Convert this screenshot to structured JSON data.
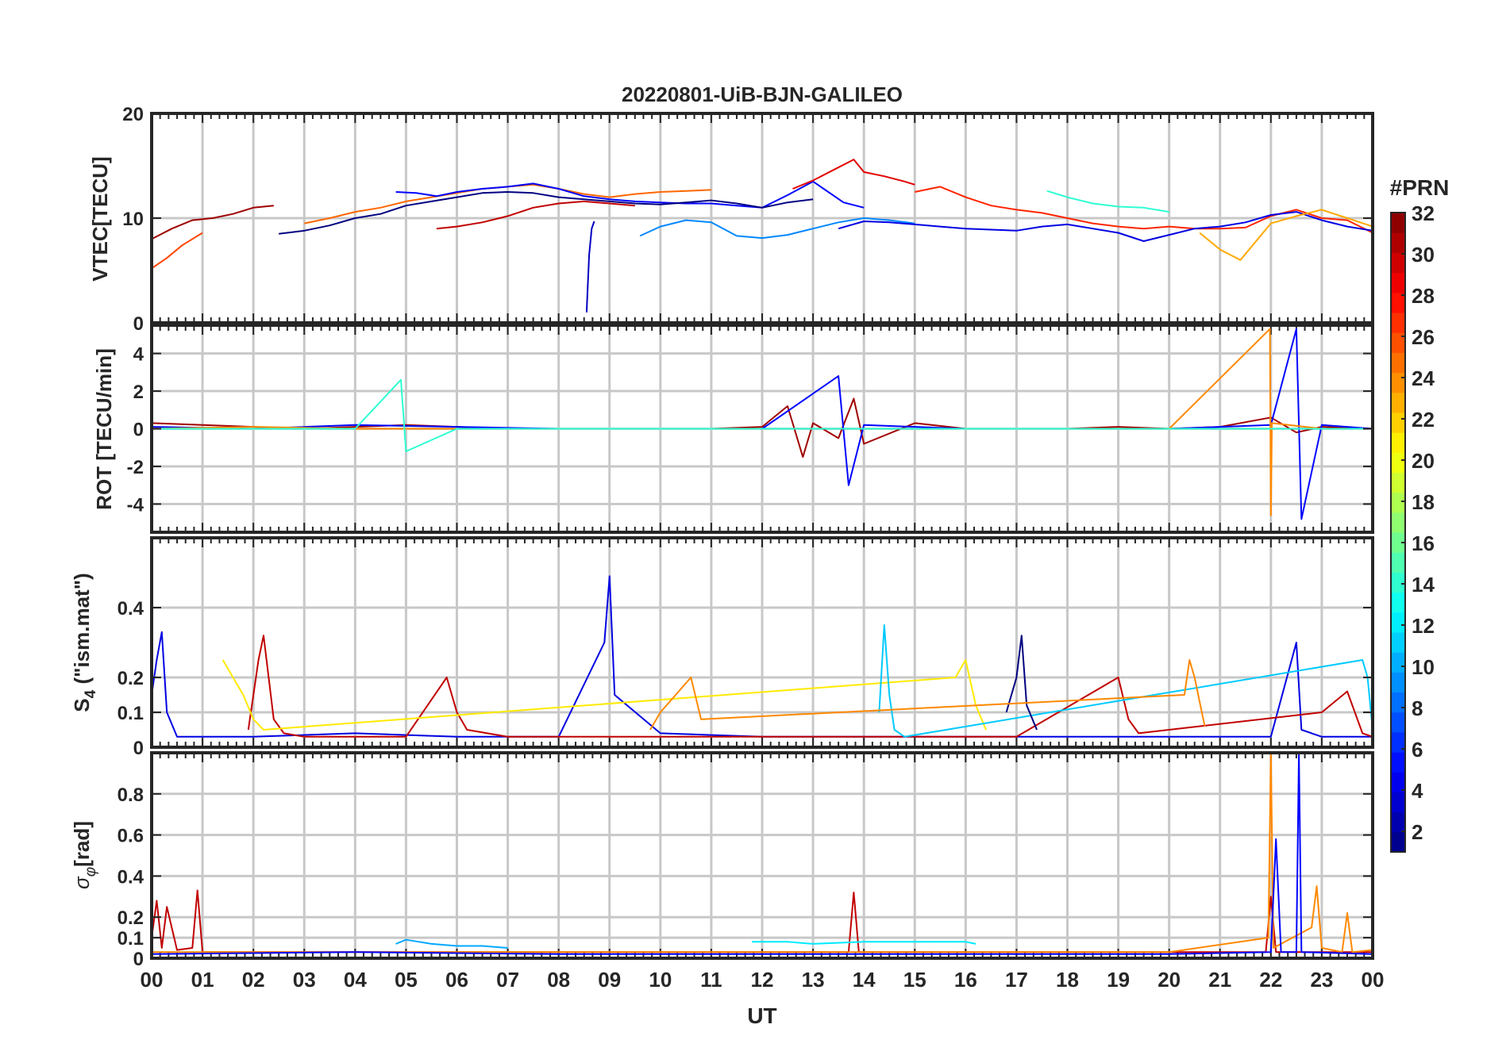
{
  "figure_title": "20220801-UiB-BJN-GALILEO",
  "colorbar": {
    "label": "#PRN",
    "ticks": [
      "2",
      "4",
      "6",
      "8",
      "10",
      "12",
      "14",
      "16",
      "18",
      "20",
      "22",
      "24",
      "26",
      "28",
      "30",
      "32"
    ],
    "range": [
      1,
      32
    ],
    "colormap": "jet"
  },
  "chart_data": [
    {
      "type": "line",
      "panel": "vtec",
      "ylabel": "VTEC[TECU]",
      "xlabel": "",
      "ylim": [
        0,
        20
      ],
      "yticks": [
        0,
        10,
        20
      ],
      "ytick_labels": [
        "0",
        "10",
        "20"
      ],
      "xlim": [
        0,
        24
      ],
      "grid": true,
      "series": [
        {
          "prn": 31,
          "x": [
            0.0,
            0.4,
            0.8,
            1.2,
            1.6,
            2.0,
            2.4
          ],
          "y": [
            8.0,
            9.0,
            9.8,
            10.0,
            10.4,
            11.0,
            11.2
          ]
        },
        {
          "prn": 26,
          "x": [
            0.0,
            0.3,
            0.6,
            1.0
          ],
          "y": [
            5.2,
            6.2,
            7.4,
            8.6
          ]
        },
        {
          "prn": 25,
          "x": [
            3.0,
            3.5,
            4.0,
            4.5,
            5.0,
            5.5,
            6.0,
            6.5,
            7.0,
            7.5,
            8.0,
            8.5,
            9.0,
            9.5,
            10.0,
            10.5,
            11.0
          ],
          "y": [
            9.5,
            10.0,
            10.6,
            11.0,
            11.6,
            12.0,
            12.4,
            12.8,
            13.0,
            13.2,
            12.8,
            12.3,
            12.0,
            12.3,
            12.5,
            12.6,
            12.7
          ]
        },
        {
          "prn": 5,
          "x": [
            4.8,
            5.2,
            5.6,
            6.0,
            6.5,
            7.0,
            7.5,
            8.0,
            8.5,
            9.0,
            9.5,
            10.0,
            10.5,
            11.0,
            11.5,
            12.0,
            12.5,
            13.0,
            13.3,
            13.6,
            14.0
          ],
          "y": [
            12.5,
            12.4,
            12.1,
            12.5,
            12.8,
            13.0,
            13.3,
            12.8,
            12.1,
            11.8,
            11.6,
            11.5,
            11.4,
            11.4,
            11.2,
            11.0,
            12.2,
            13.5,
            12.5,
            11.5,
            11.0
          ]
        },
        {
          "prn": 1,
          "x": [
            2.5,
            3.0,
            3.5,
            4.0,
            4.5,
            5.0,
            5.5,
            6.0,
            6.5,
            7.0,
            7.5,
            8.0,
            8.5,
            9.0,
            9.5,
            10.0,
            10.5,
            11.0,
            11.5,
            12.0,
            12.5,
            13.0
          ],
          "y": [
            8.5,
            8.8,
            9.3,
            10.0,
            10.4,
            11.2,
            11.6,
            12.0,
            12.4,
            12.5,
            12.4,
            12.0,
            11.8,
            11.6,
            11.4,
            11.3,
            11.5,
            11.7,
            11.4,
            11.0,
            11.5,
            11.8
          ]
        },
        {
          "prn": 30,
          "x": [
            5.6,
            6.0,
            6.5,
            7.0,
            7.5,
            8.0,
            8.5,
            9.0,
            9.5
          ],
          "y": [
            9.0,
            9.2,
            9.6,
            10.2,
            11.0,
            11.4,
            11.6,
            11.4,
            11.2
          ]
        },
        {
          "prn": 29,
          "x": [
            12.6,
            13.0,
            13.4,
            13.8,
            14.0,
            14.4,
            14.8,
            15.0
          ],
          "y": [
            12.8,
            13.6,
            14.6,
            15.6,
            14.4,
            14.0,
            13.5,
            13.2
          ]
        },
        {
          "prn": 27,
          "x": [
            15.0,
            15.5,
            16.0,
            16.5,
            17.0,
            17.5,
            18.0,
            18.5,
            19.0,
            19.5,
            20.0,
            20.5,
            21.0,
            21.5,
            22.0,
            22.5,
            23.0,
            23.5,
            24.0
          ],
          "y": [
            12.5,
            13.0,
            12.0,
            11.2,
            10.8,
            10.5,
            10.0,
            9.5,
            9.2,
            9.0,
            9.2,
            9.0,
            9.0,
            9.1,
            10.2,
            10.8,
            10.0,
            9.8,
            8.6
          ]
        },
        {
          "prn": 9,
          "x": [
            9.6,
            10.0,
            10.5,
            11.0,
            11.5,
            12.0,
            12.5,
            13.0,
            13.5,
            14.0,
            14.5,
            15.0
          ],
          "y": [
            8.3,
            9.2,
            9.8,
            9.6,
            8.3,
            8.1,
            8.4,
            9.0,
            9.6,
            10.0,
            9.8,
            9.5
          ]
        },
        {
          "prn": 4,
          "x": [
            13.5,
            14.0,
            14.5,
            15.0,
            15.5,
            16.0,
            16.5,
            17.0,
            17.5,
            18.0,
            18.5,
            19.0,
            19.5,
            20.0,
            20.5,
            21.0,
            21.5,
            22.0,
            22.5,
            23.0,
            23.5,
            24.0
          ],
          "y": [
            9.0,
            9.7,
            9.6,
            9.4,
            9.2,
            9.0,
            8.9,
            8.8,
            9.2,
            9.4,
            9.0,
            8.6,
            7.8,
            8.4,
            9.0,
            9.2,
            9.6,
            10.3,
            10.6,
            9.8,
            9.2,
            8.8
          ]
        },
        {
          "prn": 14,
          "x": [
            17.6,
            18.0,
            18.5,
            19.0,
            19.5,
            20.0
          ],
          "y": [
            12.6,
            12.0,
            11.4,
            11.1,
            11.0,
            10.6
          ]
        },
        {
          "prn": 23,
          "x": [
            20.6,
            21.0,
            21.4,
            22.0,
            22.5,
            23.0,
            23.5,
            24.0
          ],
          "y": [
            8.6,
            7.0,
            6.0,
            9.5,
            10.2,
            10.8,
            10.0,
            9.2
          ]
        },
        {
          "prn": 3,
          "x": [
            8.55,
            8.6,
            8.65,
            8.7
          ],
          "y": [
            1.0,
            6.5,
            9.0,
            9.7
          ]
        }
      ]
    },
    {
      "type": "line",
      "panel": "rot",
      "ylabel": "ROT [TECU/min]",
      "xlabel": "",
      "ylim": [
        -5.5,
        5.5
      ],
      "yticks": [
        -4,
        -2,
        0,
        2,
        4
      ],
      "ytick_labels": [
        "-4",
        "-2",
        "0",
        "2",
        "4"
      ],
      "xlim": [
        0,
        24
      ],
      "grid": true,
      "series": [
        {
          "prn": 31,
          "x": [
            0.0,
            1.0,
            2.0,
            3.0,
            4.0,
            5.0,
            6.0,
            7.0,
            8.0,
            9.0,
            10.0,
            11.0,
            12.0,
            12.5,
            12.8,
            13.0,
            13.5,
            13.8,
            14.0,
            15.0,
            16.0,
            17.0,
            18.0,
            19.0,
            20.0,
            21.0,
            22.0,
            22.5,
            23.0,
            24.0
          ],
          "y": [
            0.3,
            0.2,
            0.1,
            0.0,
            0.1,
            0.2,
            0.1,
            0.0,
            0.0,
            0.0,
            0.0,
            0.0,
            0.1,
            1.2,
            -1.5,
            0.3,
            -0.5,
            1.6,
            -0.8,
            0.3,
            0.0,
            0.0,
            0.0,
            0.1,
            0.0,
            0.1,
            0.6,
            -0.2,
            0.1,
            0.0
          ]
        },
        {
          "prn": 5,
          "x": [
            0.0,
            2.0,
            4.0,
            6.0,
            8.0,
            10.0,
            12.0,
            13.5,
            13.7,
            14.0,
            16.0,
            18.0,
            20.0,
            22.0,
            22.5,
            22.6,
            23.0,
            24.0
          ],
          "y": [
            0.1,
            0.0,
            0.2,
            0.1,
            0.0,
            0.0,
            0.0,
            2.8,
            -3.0,
            0.2,
            0.0,
            0.0,
            0.0,
            0.2,
            5.3,
            -4.8,
            0.2,
            0.0
          ]
        },
        {
          "prn": 24,
          "x": [
            0.0,
            2.0,
            4.0,
            6.0,
            8.0,
            10.0,
            12.0,
            14.0,
            16.0,
            18.0,
            20.0,
            21.98,
            22.0,
            22.02,
            23.0,
            24.0
          ],
          "y": [
            0.0,
            0.1,
            0.0,
            0.0,
            0.0,
            0.0,
            0.0,
            0.0,
            0.0,
            0.0,
            0.0,
            5.3,
            -4.6,
            0.3,
            0.0,
            0.0
          ]
        },
        {
          "prn": 14,
          "x": [
            0.0,
            2.0,
            4.0,
            4.9,
            5.0,
            6.0,
            8.0,
            10.0,
            12.0,
            14.0,
            16.0,
            18.0,
            20.0,
            22.0,
            24.0
          ],
          "y": [
            0.0,
            0.0,
            0.0,
            2.6,
            -1.2,
            0.0,
            0.0,
            0.0,
            0.0,
            0.0,
            0.0,
            0.0,
            0.0,
            0.0,
            0.0
          ]
        }
      ]
    },
    {
      "type": "line",
      "panel": "s4",
      "ylabel": "S4 (\"ism.mat\")",
      "xlabel": "",
      "ylim": [
        0,
        0.6
      ],
      "yticks": [
        0,
        0.1,
        0.2,
        0.4
      ],
      "ytick_labels": [
        "0",
        "0.1",
        "0.2",
        "0.4"
      ],
      "xlim": [
        0,
        24
      ],
      "grid": true,
      "series": [
        {
          "prn": 4,
          "x": [
            0.0,
            0.1,
            0.2,
            0.3,
            0.5,
            1.0,
            2.0,
            4.0,
            6.0,
            8.0,
            8.9,
            9.0,
            9.1,
            10.0,
            12.0,
            14.0,
            16.0,
            18.0,
            20.0,
            22.0,
            22.5,
            22.6,
            23.0,
            24.0
          ],
          "y": [
            0.15,
            0.25,
            0.33,
            0.1,
            0.03,
            0.03,
            0.03,
            0.04,
            0.03,
            0.03,
            0.3,
            0.49,
            0.15,
            0.04,
            0.03,
            0.03,
            0.03,
            0.03,
            0.03,
            0.03,
            0.3,
            0.05,
            0.03,
            0.03
          ]
        },
        {
          "prn": 30,
          "x": [
            1.9,
            2.1,
            2.2,
            2.4,
            2.6,
            3.0,
            5.0,
            5.8,
            6.0,
            6.2,
            7.0,
            13.5,
            17.0,
            19.0,
            19.2,
            19.4,
            23.0,
            23.5,
            23.8,
            24.0
          ],
          "y": [
            0.05,
            0.25,
            0.32,
            0.08,
            0.04,
            0.03,
            0.03,
            0.2,
            0.1,
            0.05,
            0.03,
            0.03,
            0.03,
            0.2,
            0.08,
            0.04,
            0.1,
            0.16,
            0.04,
            0.03
          ]
        },
        {
          "prn": 21,
          "x": [
            1.4,
            1.6,
            1.8,
            2.0,
            2.2,
            15.8,
            16.0,
            16.2,
            16.4
          ],
          "y": [
            0.25,
            0.2,
            0.15,
            0.08,
            0.05,
            0.2,
            0.25,
            0.12,
            0.05
          ]
        },
        {
          "prn": 11,
          "x": [
            14.3,
            14.4,
            14.5,
            14.6,
            14.8,
            23.8,
            23.9,
            24.0
          ],
          "y": [
            0.1,
            0.35,
            0.15,
            0.05,
            0.03,
            0.25,
            0.2,
            0.05
          ]
        },
        {
          "prn": 1,
          "x": [
            16.8,
            17.0,
            17.1,
            17.2,
            17.4
          ],
          "y": [
            0.1,
            0.2,
            0.32,
            0.12,
            0.05
          ]
        },
        {
          "prn": 24,
          "x": [
            9.8,
            10.0,
            10.3,
            10.6,
            10.8,
            20.3,
            20.4,
            20.5,
            20.7
          ],
          "y": [
            0.05,
            0.1,
            0.15,
            0.2,
            0.08,
            0.15,
            0.25,
            0.2,
            0.06
          ]
        }
      ]
    },
    {
      "type": "line",
      "panel": "sigma_phi",
      "ylabel": "σφ[rad]",
      "xlabel": "UT",
      "ylim": [
        0,
        1
      ],
      "yticks": [
        0,
        0.1,
        0.2,
        0.4,
        0.6,
        0.8
      ],
      "ytick_labels": [
        "0",
        "0.1",
        "0.2",
        "0.4",
        "0.6",
        "0.8"
      ],
      "xlim": [
        0,
        24
      ],
      "xticks": [
        0,
        1,
        2,
        3,
        4,
        5,
        6,
        7,
        8,
        9,
        10,
        11,
        12,
        13,
        14,
        15,
        16,
        17,
        18,
        19,
        20,
        21,
        22,
        23,
        24
      ],
      "xtick_labels": [
        "00",
        "01",
        "02",
        "03",
        "04",
        "05",
        "06",
        "07",
        "08",
        "09",
        "10",
        "11",
        "12",
        "13",
        "14",
        "15",
        "16",
        "17",
        "18",
        "19",
        "20",
        "21",
        "22",
        "23",
        "00"
      ],
      "grid": true,
      "series": [
        {
          "prn": 30,
          "x": [
            0.0,
            0.1,
            0.2,
            0.3,
            0.5,
            0.8,
            0.9,
            1.0,
            2.0,
            6.0,
            10.0,
            13.7,
            13.8,
            13.9,
            16.0,
            20.0,
            21.9,
            22.0,
            22.1,
            24.0
          ],
          "y": [
            0.1,
            0.28,
            0.05,
            0.25,
            0.04,
            0.05,
            0.33,
            0.03,
            0.03,
            0.03,
            0.03,
            0.03,
            0.32,
            0.03,
            0.03,
            0.03,
            0.03,
            0.3,
            0.03,
            0.03
          ]
        },
        {
          "prn": 24,
          "x": [
            0.0,
            4.0,
            8.0,
            12.0,
            16.0,
            20.0,
            21.95,
            22.0,
            22.05,
            22.8,
            22.9,
            23.0,
            23.4,
            23.5,
            23.6,
            24.0
          ],
          "y": [
            0.03,
            0.03,
            0.03,
            0.03,
            0.03,
            0.03,
            0.1,
            1.0,
            0.05,
            0.15,
            0.35,
            0.05,
            0.03,
            0.22,
            0.03,
            0.04
          ]
        },
        {
          "prn": 5,
          "x": [
            0.0,
            4.0,
            8.0,
            12.0,
            16.0,
            20.0,
            22.0,
            22.1,
            22.2,
            22.5,
            22.55,
            22.6,
            24.0
          ],
          "y": [
            0.02,
            0.03,
            0.02,
            0.02,
            0.02,
            0.02,
            0.03,
            0.58,
            0.03,
            0.03,
            1.0,
            0.03,
            0.02
          ]
        },
        {
          "prn": 12,
          "x": [
            11.8,
            12.5,
            13.0,
            14.0,
            15.0,
            16.0,
            16.2
          ],
          "y": [
            0.08,
            0.08,
            0.07,
            0.08,
            0.08,
            0.08,
            0.07
          ]
        },
        {
          "prn": 10,
          "x": [
            4.8,
            5.0,
            5.5,
            6.0,
            6.5,
            7.0
          ],
          "y": [
            0.07,
            0.09,
            0.07,
            0.06,
            0.06,
            0.05
          ]
        }
      ]
    }
  ]
}
